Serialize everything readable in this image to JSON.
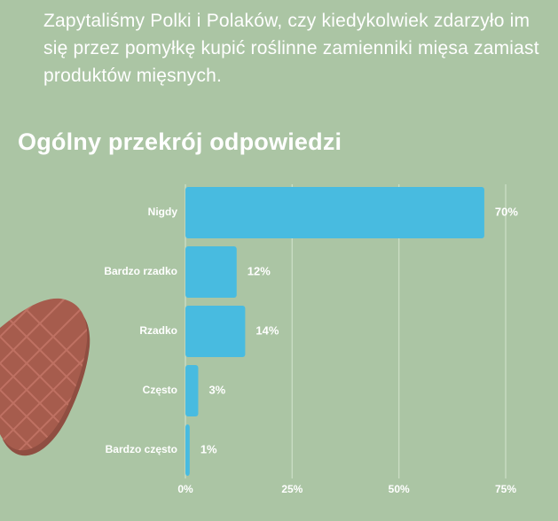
{
  "header": {
    "intro_text": "Zapytaliśmy Polki i Polaków, czy kiedykolwiek zdarzyło im się przez pomyłkę kupić roślinne zamienniki mięsa zamiast produktów mięsnych.",
    "section_title": "Ogólny przekrój odpowiedzi"
  },
  "chart_data": {
    "type": "bar",
    "orientation": "horizontal",
    "categories": [
      "Nigdy",
      "Bardzo rzadko",
      "Rzadko",
      "Często",
      "Bardzo często"
    ],
    "values": [
      70,
      12,
      14,
      3,
      1
    ],
    "value_labels": [
      "70%",
      "12%",
      "14%",
      "3%",
      "1%"
    ],
    "xlim": [
      0,
      75
    ],
    "xticks": [
      0,
      25,
      50,
      75
    ],
    "xtick_labels": [
      "0%",
      "25%",
      "50%",
      "75%"
    ],
    "grid": "vertical",
    "bar_color": "#48bbe0",
    "grid_color": "#c9dcc3"
  },
  "colors": {
    "background": "#abc5a4",
    "text": "#ffffff",
    "meat": "#a65c4d",
    "meat_shadow": "#8f4e41",
    "meat_grid": "#c7796b"
  },
  "decoration": {
    "icon": "meat-slice-icon"
  }
}
